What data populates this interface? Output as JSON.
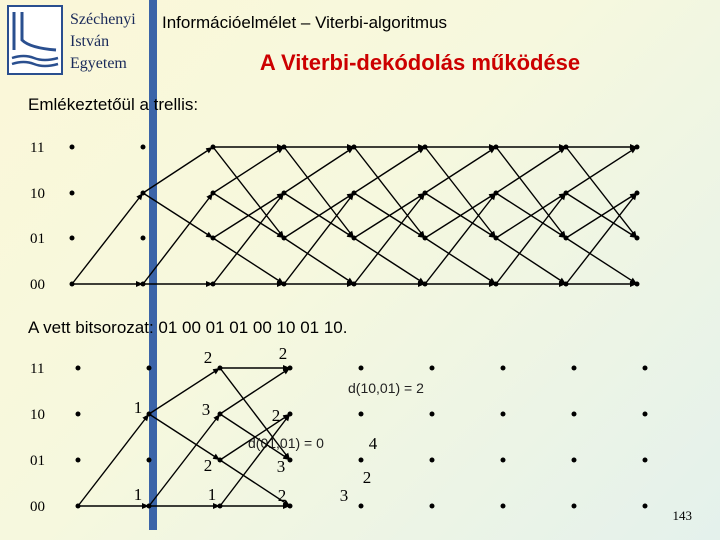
{
  "logo": {
    "lines": [
      "Széchenyi",
      "István",
      "Egyetem"
    ]
  },
  "header": {
    "course": "Információelmélet – Viterbi-algoritmus",
    "title": "A Viterbi-dekódolás működése"
  },
  "trellis": {
    "caption": "Emlékeztetőül a trellis:",
    "state_labels": [
      "11",
      "10",
      "01",
      "00"
    ]
  },
  "received": {
    "caption": "A vett bitsorozat: 01 00 01 01 00 10 01 10.",
    "state_labels": [
      "11",
      "10",
      "01",
      "00"
    ],
    "metrics": [
      1,
      1,
      2,
      3,
      2,
      1,
      2,
      2,
      3,
      2,
      4,
      2,
      3
    ],
    "annotations": [
      "d(10,01) = 2",
      "d(01,01) = 0"
    ]
  },
  "page_number": "143"
}
